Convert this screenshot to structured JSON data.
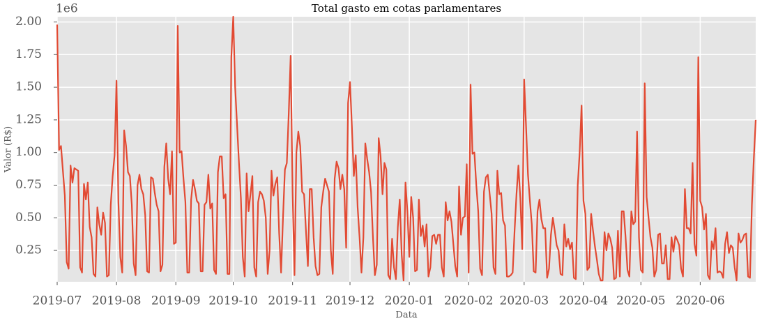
{
  "chart_data": {
    "type": "line",
    "title": "Total gasto em cotas parlamentares",
    "x_label": "Data",
    "y_label": "Valor (R$)",
    "y_offset_label": "1e6",
    "xlim": [
      0,
      365
    ],
    "ylim": [
      0.01,
      2.04
    ],
    "grid": true,
    "xticks": [
      {
        "value": 0,
        "label": "2019-07"
      },
      {
        "value": 31,
        "label": "2019-08"
      },
      {
        "value": 62,
        "label": "2019-09"
      },
      {
        "value": 92,
        "label": "2019-10"
      },
      {
        "value": 123,
        "label": "2019-11"
      },
      {
        "value": 153,
        "label": "2019-12"
      },
      {
        "value": 184,
        "label": "2020-01"
      },
      {
        "value": 215,
        "label": "2020-02"
      },
      {
        "value": 244,
        "label": "2020-03"
      },
      {
        "value": 275,
        "label": "2020-04"
      },
      {
        "value": 305,
        "label": "2020-05"
      },
      {
        "value": 336,
        "label": "2020-06"
      }
    ],
    "yticks": [
      0.25,
      {
        "value": 0.5,
        "label": "0.50"
      },
      0.75,
      {
        "value": 1,
        "label": "1.00"
      },
      1.25,
      {
        "value": 1.5,
        "label": "1.50"
      },
      1.75,
      {
        "value": 2,
        "label": "2.00"
      }
    ],
    "series": [
      {
        "color": "#e24a33",
        "x": [
          0,
          1,
          2,
          4,
          5,
          6,
          7,
          8,
          9,
          11,
          12,
          13,
          14,
          15,
          16,
          17,
          18,
          19,
          20,
          21,
          22,
          23,
          24,
          25,
          26,
          27,
          28,
          29,
          30,
          31,
          32,
          33,
          34,
          35,
          36,
          37,
          38,
          39,
          40,
          41,
          42,
          43,
          44,
          45,
          46,
          47,
          48,
          49,
          50,
          51,
          52,
          53,
          54,
          55,
          56,
          57,
          58,
          59,
          60,
          61,
          62,
          63,
          64,
          65,
          66,
          67,
          68,
          69,
          70,
          71,
          72,
          73,
          74,
          75,
          76,
          77,
          78,
          79,
          80,
          81,
          82,
          83,
          84,
          85,
          86,
          87,
          88,
          89,
          90,
          91,
          92,
          93,
          95,
          96,
          97,
          98,
          99,
          100,
          101,
          102,
          103,
          104,
          105,
          106,
          107,
          108,
          109,
          110,
          111,
          112,
          113,
          114,
          115,
          116,
          117,
          118,
          119,
          120,
          121,
          122,
          123,
          124,
          125,
          126,
          127,
          128,
          129,
          130,
          131,
          132,
          133,
          134,
          135,
          136,
          137,
          138,
          139,
          140,
          141,
          142,
          143,
          144,
          145,
          146,
          147,
          148,
          149,
          150,
          151,
          152,
          153,
          154,
          155,
          156,
          157,
          158,
          159,
          160,
          161,
          162,
          163,
          164,
          165,
          166,
          167,
          168,
          169,
          170,
          171,
          172,
          173,
          174,
          175,
          176,
          177,
          178,
          179,
          180,
          181,
          182,
          183,
          184,
          185,
          186,
          187,
          188,
          189,
          190,
          191,
          192,
          193,
          194,
          195,
          196,
          197,
          198,
          199,
          200,
          201,
          202,
          203,
          204,
          205,
          206,
          207,
          208,
          209,
          210,
          211,
          212,
          213,
          214,
          215,
          216,
          217,
          218,
          219,
          220,
          221,
          222,
          223,
          224,
          225,
          226,
          227,
          228,
          229,
          230,
          231,
          232,
          233,
          234,
          235,
          236,
          237,
          238,
          239,
          240,
          241,
          242,
          243,
          244,
          245,
          246,
          247,
          248,
          249,
          250,
          251,
          252,
          253,
          254,
          255,
          256,
          257,
          258,
          259,
          260,
          261,
          262,
          263,
          264,
          265,
          266,
          267,
          268,
          269,
          270,
          271,
          272,
          273,
          274,
          275,
          276,
          277,
          278,
          279,
          280,
          281,
          282,
          283,
          284,
          285,
          286,
          287,
          288,
          289,
          290,
          291,
          292,
          293,
          294,
          295,
          296,
          297,
          298,
          299,
          300,
          301,
          302,
          303,
          304,
          305,
          306,
          307,
          308,
          309,
          310,
          311,
          312,
          313,
          314,
          315,
          316,
          317,
          318,
          319,
          320,
          321,
          322,
          323,
          324,
          325,
          326,
          327,
          328,
          329,
          330,
          331,
          332,
          333,
          334,
          335,
          336,
          337,
          338,
          339,
          340,
          341,
          342,
          343,
          344,
          345,
          346,
          347,
          348,
          349,
          350,
          351,
          352,
          353,
          354,
          355,
          356,
          357,
          358,
          359,
          360,
          361,
          362,
          363,
          364,
          365
        ],
        "values": [
          1.98,
          1.02,
          1.05,
          0.67,
          0.16,
          0.11,
          0.9,
          0.77,
          0.88,
          0.86,
          0.12,
          0.08,
          0.76,
          0.64,
          0.77,
          0.43,
          0.35,
          0.07,
          0.05,
          0.58,
          0.45,
          0.37,
          0.54,
          0.46,
          0.05,
          0.06,
          0.6,
          0.82,
          0.98,
          1.55,
          0.62,
          0.2,
          0.08,
          1.17,
          1.05,
          0.85,
          0.82,
          0.6,
          0.15,
          0.06,
          0.75,
          0.83,
          0.72,
          0.68,
          0.52,
          0.09,
          0.08,
          0.81,
          0.8,
          0.69,
          0.6,
          0.55,
          0.09,
          0.14,
          0.89,
          1.07,
          0.8,
          0.68,
          1.01,
          0.3,
          0.31,
          1.97,
          1.0,
          1.01,
          0.8,
          0.62,
          0.08,
          0.08,
          0.64,
          0.79,
          0.72,
          0.63,
          0.61,
          0.09,
          0.09,
          0.6,
          0.62,
          0.83,
          0.57,
          0.61,
          0.1,
          0.07,
          0.85,
          0.97,
          0.97,
          0.65,
          0.68,
          0.07,
          0.07,
          1.73,
          2.04,
          1.5,
          0.92,
          0.65,
          0.2,
          0.05,
          0.84,
          0.55,
          0.68,
          0.82,
          0.12,
          0.05,
          0.62,
          0.7,
          0.68,
          0.63,
          0.5,
          0.07,
          0.25,
          0.86,
          0.67,
          0.76,
          0.81,
          0.38,
          0.08,
          0.5,
          0.87,
          0.92,
          1.3,
          1.74,
          0.7,
          0.06,
          1.0,
          1.16,
          1.05,
          0.7,
          0.68,
          0.4,
          0.13,
          0.72,
          0.72,
          0.35,
          0.13,
          0.06,
          0.07,
          0.58,
          0.7,
          0.8,
          0.75,
          0.7,
          0.25,
          0.07,
          0.8,
          0.93,
          0.88,
          0.72,
          0.83,
          0.72,
          0.27,
          1.38,
          1.54,
          1.2,
          0.82,
          0.98,
          0.58,
          0.35,
          0.08,
          0.35,
          1.07,
          0.95,
          0.85,
          0.7,
          0.35,
          0.06,
          0.14,
          1.11,
          0.97,
          0.68,
          0.92,
          0.87,
          0.06,
          0.03,
          0.34,
          0.12,
          0.03,
          0.43,
          0.64,
          0.22,
          0.02,
          0.77,
          0.55,
          0.2,
          0.66,
          0.5,
          0.09,
          0.1,
          0.64,
          0.36,
          0.44,
          0.28,
          0.45,
          0.05,
          0.12,
          0.36,
          0.37,
          0.3,
          0.37,
          0.37,
          0.12,
          0.05,
          0.62,
          0.48,
          0.55,
          0.47,
          0.3,
          0.13,
          0.05,
          0.74,
          0.37,
          0.5,
          0.51,
          0.91,
          0.08,
          1.52,
          0.99,
          1.0,
          0.75,
          0.55,
          0.11,
          0.06,
          0.7,
          0.81,
          0.83,
          0.68,
          0.53,
          0.12,
          0.07,
          0.86,
          0.68,
          0.69,
          0.48,
          0.44,
          0.05,
          0.05,
          0.06,
          0.08,
          0.4,
          0.68,
          0.9,
          0.65,
          0.26,
          1.56,
          1.2,
          0.83,
          0.63,
          0.45,
          0.09,
          0.08,
          0.55,
          0.64,
          0.49,
          0.42,
          0.42,
          0.04,
          0.11,
          0.37,
          0.5,
          0.4,
          0.29,
          0.25,
          0.07,
          0.06,
          0.45,
          0.28,
          0.34,
          0.26,
          0.31,
          0.04,
          0.03,
          0.75,
          1.0,
          1.36,
          0.63,
          0.53,
          0.1,
          0.12,
          0.53,
          0.4,
          0.28,
          0.18,
          0.07,
          0.02,
          0.02,
          0.39,
          0.25,
          0.38,
          0.34,
          0.27,
          0.03,
          0.04,
          0.4,
          0.05,
          0.55,
          0.55,
          0.35,
          0.1,
          0.05,
          0.55,
          0.45,
          0.47,
          1.16,
          0.35,
          0.1,
          0.08,
          1.53,
          0.66,
          0.5,
          0.35,
          0.27,
          0.05,
          0.1,
          0.37,
          0.38,
          0.15,
          0.15,
          0.29,
          0.03,
          0.03,
          0.35,
          0.24,
          0.36,
          0.33,
          0.29,
          0.11,
          0.05,
          0.72,
          0.42,
          0.42,
          0.38,
          0.92,
          0.3,
          0.21,
          1.73,
          0.63,
          0.58,
          0.41,
          0.53,
          0.06,
          0.03,
          0.32,
          0.26,
          0.42,
          0.08,
          0.09,
          0.08,
          0.04,
          0.3,
          0.39,
          0.23,
          0.29,
          0.27,
          0.12,
          0.02,
          0.38,
          0.31,
          0.33,
          0.37,
          0.38,
          0.05,
          0.04,
          0.6,
          0.95,
          1.25
        ]
      }
    ]
  }
}
